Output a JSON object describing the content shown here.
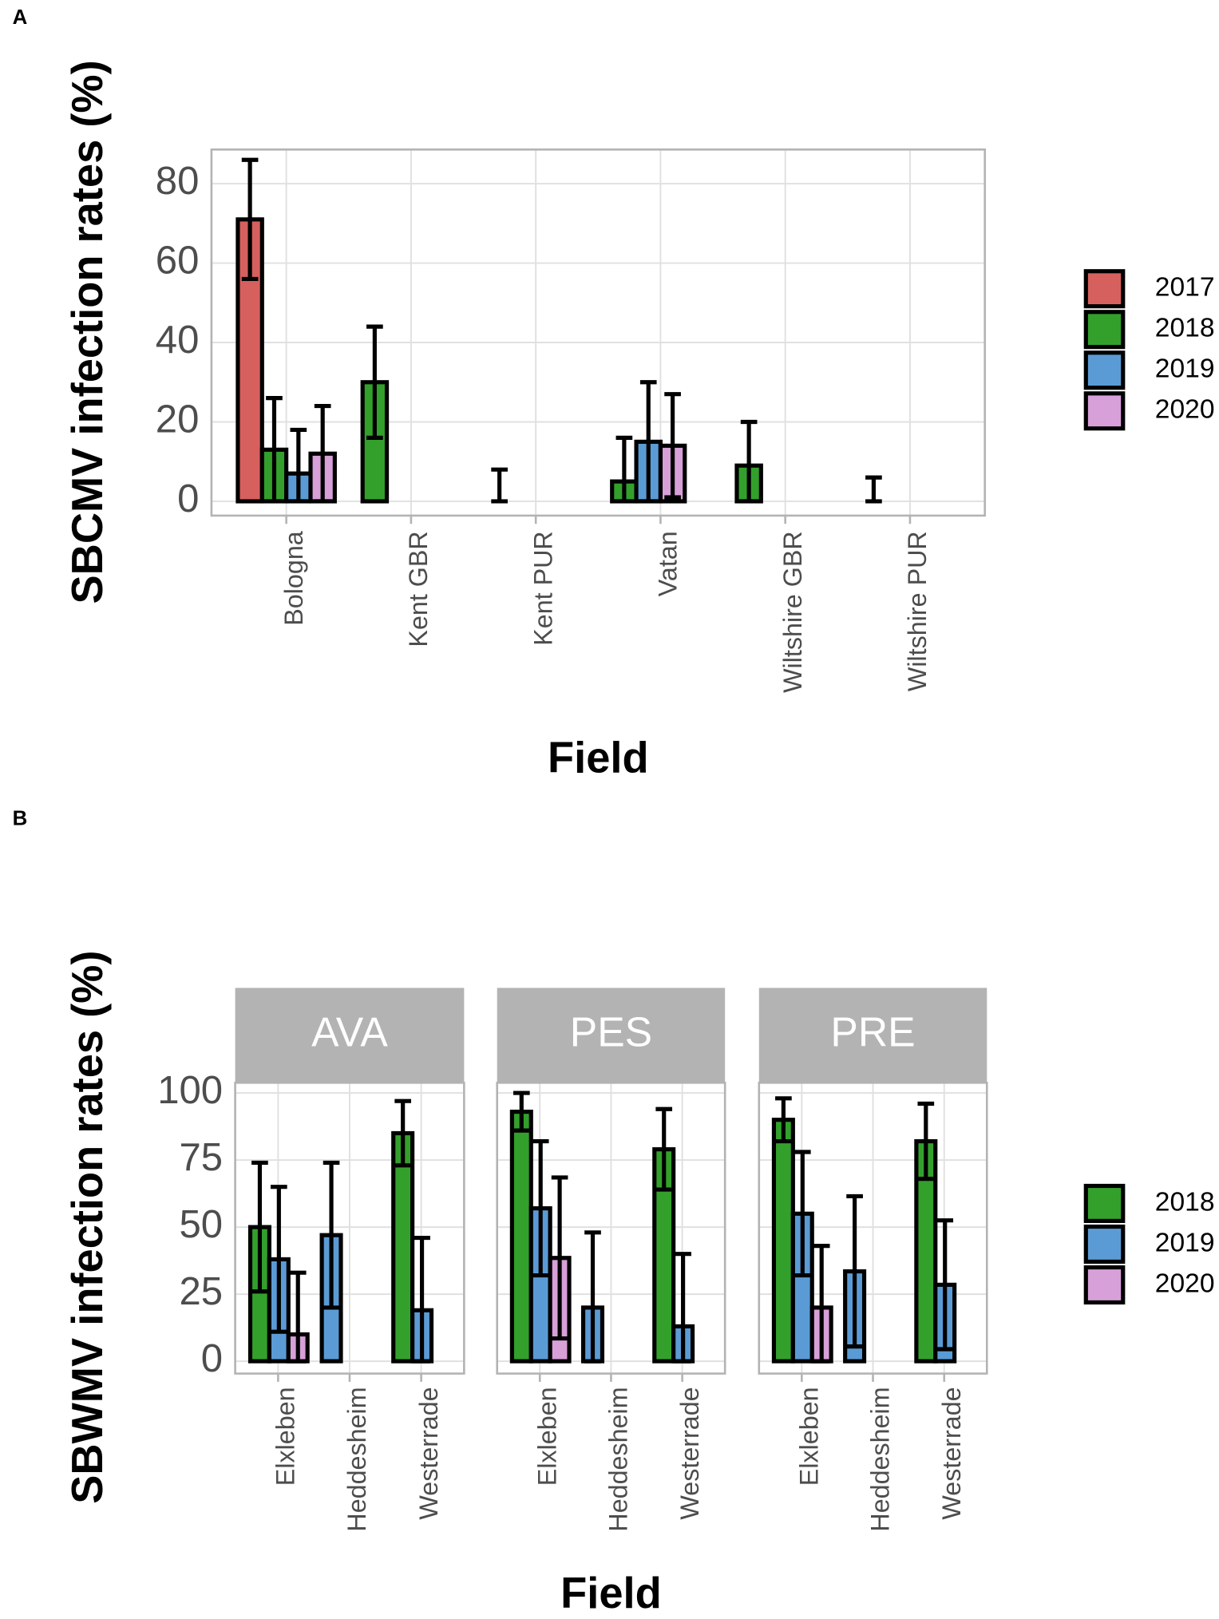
{
  "chart_data": [
    {
      "type": "bar",
      "label": "A",
      "ylabel": "SBCMV infection rates (%)",
      "xlabel": "Field",
      "categories": [
        "Bologna",
        "Kent GBR",
        "Kent PUR",
        "Vatan",
        "Wiltshire GBR",
        "Wiltshire PUR"
      ],
      "ylim": [
        -3.6,
        88.6
      ],
      "yticks": [
        0,
        20,
        40,
        60,
        80
      ],
      "grid": true,
      "series": [
        {
          "name": "2017",
          "color": "#d6605e",
          "values": [
            71,
            null,
            null,
            null,
            null,
            null
          ],
          "errors": [
            15,
            null,
            null,
            null,
            null,
            null
          ]
        },
        {
          "name": "2018",
          "color": "#33a02c",
          "values": [
            13,
            30,
            0,
            5,
            9,
            0
          ],
          "errors": [
            13,
            14,
            8,
            11,
            11,
            6
          ]
        },
        {
          "name": "2019",
          "color": "#5b9bd5",
          "values": [
            7,
            null,
            null,
            15,
            null,
            null
          ],
          "errors": [
            11,
            null,
            null,
            15,
            null,
            null
          ]
        },
        {
          "name": "2020",
          "color": "#d7a0d8",
          "values": [
            12,
            null,
            null,
            14,
            null,
            null
          ],
          "errors": [
            12,
            null,
            null,
            13,
            null,
            null
          ]
        }
      ]
    },
    {
      "type": "bar",
      "label": "B",
      "ylabel": "SBWMV infection rates (%)",
      "xlabel": "Field",
      "facets": [
        "AVA",
        "PES",
        "PRE"
      ],
      "categories": [
        "Elxleben",
        "Heddesheim",
        "Westerrade"
      ],
      "ylim": [
        -4.6,
        103.8
      ],
      "yticks": [
        0,
        25,
        50,
        75,
        100
      ],
      "grid": true,
      "series": [
        {
          "name": "2018",
          "color": "#33a02c",
          "values": [
            [
              50,
              null,
              85
            ],
            [
              93,
              null,
              79
            ],
            [
              90,
              null,
              82
            ]
          ],
          "errors": [
            [
              24,
              null,
              12
            ],
            [
              7,
              null,
              15
            ],
            [
              8,
              null,
              14
            ]
          ]
        },
        {
          "name": "2019",
          "color": "#5b9bd5",
          "values": [
            [
              38,
              47,
              19
            ],
            [
              57,
              20,
              13
            ],
            [
              55,
              33.5,
              28.5
            ]
          ],
          "errors": [
            [
              27,
              27,
              27
            ],
            [
              25,
              28,
              27
            ],
            [
              23,
              28,
              24
            ]
          ]
        },
        {
          "name": "2020",
          "color": "#d7a0d8",
          "values": [
            [
              10,
              null,
              null
            ],
            [
              38.5,
              null,
              null
            ],
            [
              20,
              null,
              null
            ]
          ],
          "errors": [
            [
              23,
              null,
              null
            ],
            [
              30,
              null,
              null
            ],
            [
              23,
              null,
              null
            ]
          ]
        }
      ]
    }
  ]
}
